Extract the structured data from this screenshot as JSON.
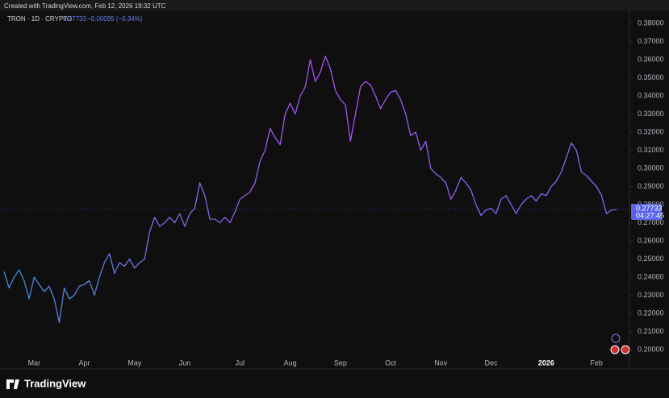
{
  "chart_data": {
    "type": "line",
    "header": "Created with TradingView.com, Feb 12, 2026 19:32 UTC",
    "title": "TRON · 1D · CRYPTO",
    "last_label": "0.27733",
    "change": "−0.00095 (−0.34%)",
    "countdown": "04:27:45",
    "brand": "TradingView",
    "gradient": [
      "#3d8fd6",
      "#a94ff0",
      "#6f6ff2"
    ],
    "grid": false,
    "categories": [
      null,
      null,
      null,
      null,
      null,
      null,
      "Mar",
      null,
      null,
      null,
      null,
      null,
      null,
      null,
      null,
      null,
      "Apr",
      null,
      null,
      null,
      null,
      null,
      null,
      null,
      null,
      null,
      "May",
      null,
      null,
      null,
      null,
      null,
      null,
      null,
      null,
      null,
      "Jun",
      null,
      null,
      null,
      null,
      null,
      null,
      null,
      null,
      null,
      null,
      "Jul",
      null,
      null,
      null,
      null,
      null,
      null,
      null,
      null,
      null,
      "Aug",
      null,
      null,
      null,
      null,
      null,
      null,
      null,
      null,
      null,
      "Sep",
      null,
      null,
      null,
      null,
      null,
      null,
      null,
      null,
      null,
      "Oct",
      null,
      null,
      null,
      null,
      null,
      null,
      null,
      null,
      null,
      "Nov",
      null,
      null,
      null,
      null,
      null,
      null,
      null,
      null,
      null,
      "Dec",
      null,
      null,
      null,
      null,
      null,
      null,
      null,
      null,
      null,
      null,
      "2026",
      null,
      null,
      null,
      null,
      null,
      null,
      null,
      null,
      null,
      "Feb",
      null,
      null,
      null,
      null
    ],
    "values": [
      0.243,
      0.234,
      0.24,
      0.244,
      0.238,
      0.228,
      0.24,
      0.236,
      0.232,
      0.235,
      0.228,
      0.215,
      0.234,
      0.228,
      0.23,
      0.235,
      0.236,
      0.238,
      0.23,
      0.24,
      0.248,
      0.253,
      0.242,
      0.248,
      0.246,
      0.25,
      0.245,
      0.248,
      0.25,
      0.265,
      0.273,
      0.268,
      0.27,
      0.273,
      0.27,
      0.275,
      0.268,
      0.275,
      0.278,
      0.292,
      0.285,
      0.272,
      0.272,
      0.27,
      0.273,
      0.27,
      0.276,
      0.283,
      0.285,
      0.287,
      0.292,
      0.304,
      0.31,
      0.322,
      0.317,
      0.313,
      0.33,
      0.336,
      0.33,
      0.34,
      0.345,
      0.36,
      0.348,
      0.353,
      0.362,
      0.355,
      0.343,
      0.338,
      0.335,
      0.315,
      0.33,
      0.345,
      0.348,
      0.346,
      0.34,
      0.333,
      0.338,
      0.342,
      0.343,
      0.338,
      0.33,
      0.318,
      0.32,
      0.31,
      0.315,
      0.3,
      0.297,
      0.295,
      0.292,
      0.283,
      0.288,
      0.295,
      0.292,
      0.288,
      0.28,
      0.274,
      0.277,
      0.278,
      0.275,
      0.283,
      0.285,
      0.28,
      0.275,
      0.28,
      0.283,
      0.285,
      0.282,
      0.286,
      0.285,
      0.29,
      0.293,
      0.298,
      0.306,
      0.314,
      0.31,
      0.298,
      0.296,
      0.293,
      0.29,
      0.285,
      0.275,
      0.277,
      0.27733
    ],
    "ylim": [
      0.1893,
      0.3867
    ],
    "yticks": [
      {
        "value": 0.2,
        "label": "0.20000"
      },
      {
        "value": 0.21,
        "label": "0.21000"
      },
      {
        "value": 0.22,
        "label": "0.22000"
      },
      {
        "value": 0.23,
        "label": "0.23000"
      },
      {
        "value": 0.24,
        "label": "0.24000"
      },
      {
        "value": 0.25,
        "label": "0.25000"
      },
      {
        "value": 0.26,
        "label": "0.26000"
      },
      {
        "value": 0.27,
        "label": "0.27000"
      },
      {
        "value": 0.28,
        "label": "0.28000"
      },
      {
        "value": 0.29,
        "label": "0.29000"
      },
      {
        "value": 0.3,
        "label": "0.30000"
      },
      {
        "value": 0.31,
        "label": "0.31000"
      },
      {
        "value": 0.32,
        "label": "0.32000"
      },
      {
        "value": 0.33,
        "label": "0.33000"
      },
      {
        "value": 0.34,
        "label": "0.34000"
      },
      {
        "value": 0.35,
        "label": "0.35000"
      },
      {
        "value": 0.36,
        "label": "0.36000"
      },
      {
        "value": 0.37,
        "label": "0.37000"
      },
      {
        "value": 0.38,
        "label": "0.38000"
      }
    ]
  }
}
